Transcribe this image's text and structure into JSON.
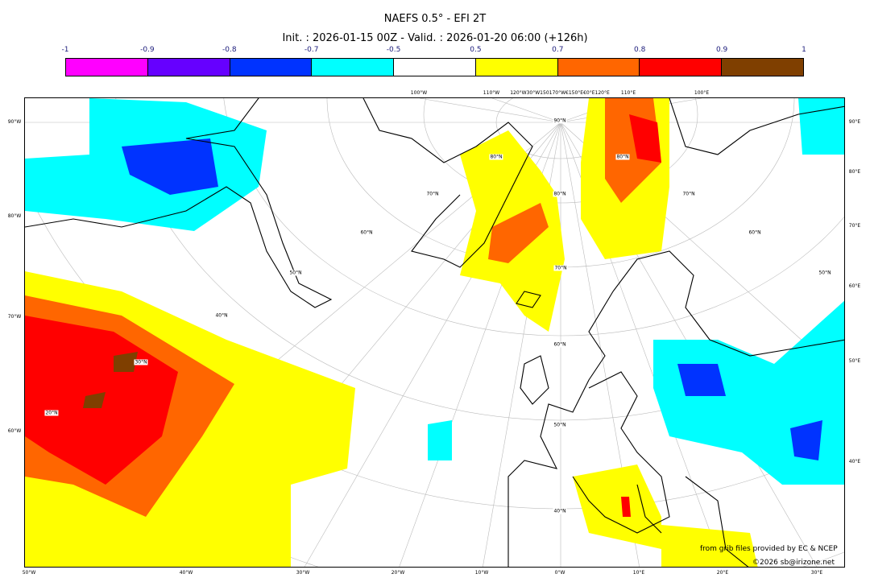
{
  "title": "NAEFS 0.5° - EFI 2T",
  "subtitle": "Init. : 2026-01-15 00Z - Valid. : 2026-01-20 06:00 (+126h)",
  "colorbar": {
    "ticks": [
      "-1",
      "-0.9",
      "-0.8",
      "-0.7",
      "-0.5",
      "0.5",
      "0.7",
      "0.8",
      "0.9",
      "1"
    ],
    "colors": [
      "#ff00ff",
      "#6600ff",
      "#0033ff",
      "#00ffff",
      "#ffffff",
      "#ffff00",
      "#ff6600",
      "#ff0000",
      "#7f3f00"
    ]
  },
  "axes": {
    "left": [
      "90°W",
      "80°W",
      "70°W",
      "60°W"
    ],
    "right": [
      "90°E",
      "80°E",
      "70°E",
      "60°E",
      "50°E",
      "40°E"
    ],
    "bottom": [
      "50°W",
      "40°W",
      "30°W",
      "20°W",
      "10°W",
      "0°W",
      "10°E",
      "20°E",
      "30°E"
    ],
    "top": [
      "100°W",
      "110°W",
      "120°W30°W150170°W€150°E€0°E120°E",
      "110°E",
      "100°E"
    ]
  },
  "lat_labels": [
    "90°N",
    "80°N",
    "80°N",
    "80°N",
    "70°N",
    "70°N",
    "70°N",
    "60°N",
    "60°N",
    "60°N",
    "50°N",
    "50°N",
    "50°N",
    "40°N",
    "40°N",
    "30°N",
    "20°N"
  ],
  "credits": {
    "source": "from grib files provided by EC & NCEP",
    "copyright": "©2026 sb@irizone.net"
  }
}
